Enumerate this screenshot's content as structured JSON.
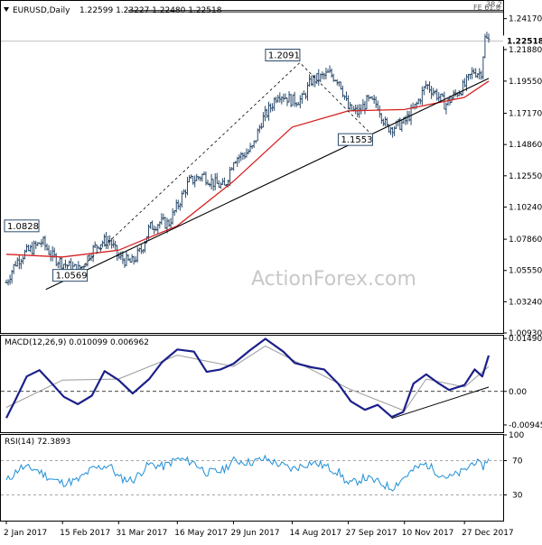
{
  "header": {
    "symbol": "EURUSD,Daily",
    "ohlc": "1.22599 1.23227 1.22480 1.22518"
  },
  "watermark": "ActionForex.com",
  "colors": {
    "price_bars": "#2a4a6b",
    "sma": "#d62020",
    "macd": "#1b1f8a",
    "signal": "#9a9a9a",
    "rsi": "#1e8fd6",
    "trendline": "#000000",
    "grid": "#000000"
  },
  "chart_data": [
    {
      "type": "candlestick",
      "panel": "price",
      "title": "EURUSD,Daily",
      "x_tick_labels": [
        "2 Jan 2017",
        "15 Feb 2017",
        "31 Mar 2017",
        "16 May 2017",
        "29 Jun 2017",
        "14 Aug 2017",
        "27 Sep 2017",
        "10 Nov 2017",
        "27 Dec 2017"
      ],
      "y_tick_labels": [
        "1.24170",
        "1.21880",
        "1.19550",
        "1.17170",
        "1.14860",
        "1.12550",
        "1.10240",
        "1.07860",
        "1.05550",
        "1.03240",
        "1.00930"
      ],
      "y_ticks": [
        1.2417,
        1.2188,
        1.1955,
        1.1717,
        1.1486,
        1.1255,
        1.1024,
        1.0786,
        1.0555,
        1.0324,
        1.0093
      ],
      "ylim": [
        1.0093,
        1.2548
      ],
      "last_price": 1.22518,
      "last_price_label": "1.22518",
      "fib_label": "FE 61.8",
      "fib_label_2": "38.2",
      "fib_level": 1.2467,
      "fib_level_2": 1.2478,
      "annotations": [
        {
          "text": "1.0828",
          "x": "2 Jan 2017",
          "y": 1.0828
        },
        {
          "text": "1.0569",
          "x": "16 Feb 2017",
          "y": 1.0569
        },
        {
          "text": "1.2091",
          "x": "20 Aug 2017",
          "y": 1.2091
        },
        {
          "text": "1.1553",
          "x": "16 Oct 2017",
          "y": 1.1553
        }
      ],
      "close_path": [
        [
          "2 Jan 2017",
          1.0465
        ],
        [
          "9 Jan 2017",
          1.061
        ],
        [
          "16 Jan 2017",
          1.068
        ],
        [
          "23 Jan 2017",
          1.072
        ],
        [
          "30 Jan 2017",
          1.077
        ],
        [
          "7 Feb 2017",
          1.066
        ],
        [
          "15 Feb 2017",
          1.061
        ],
        [
          "22 Feb 2017",
          1.0575
        ],
        [
          "1 Mar 2017",
          1.056
        ],
        [
          "9 Mar 2017",
          1.069
        ],
        [
          "16 Mar 2017",
          1.076
        ],
        [
          "24 Mar 2017",
          1.078
        ],
        [
          "31 Mar 2017",
          1.065
        ],
        [
          "10 Apr 2017",
          1.061
        ],
        [
          "18 Apr 2017",
          1.071
        ],
        [
          "24 Apr 2017",
          1.087
        ],
        [
          "2 May 2017",
          1.091
        ],
        [
          "9 May 2017",
          1.09
        ],
        [
          "16 May 2017",
          1.103
        ],
        [
          "25 May 2017",
          1.121
        ],
        [
          "5 Jun 2017",
          1.126
        ],
        [
          "14 Jun 2017",
          1.12
        ],
        [
          "22 Jun 2017",
          1.117
        ],
        [
          "29 Jun 2017",
          1.138
        ],
        [
          "7 Jul 2017",
          1.141
        ],
        [
          "14 Jul 2017",
          1.146
        ],
        [
          "21 Jul 2017",
          1.166
        ],
        [
          "28 Jul 2017",
          1.176
        ],
        [
          "3 Aug 2017",
          1.187
        ],
        [
          "14 Aug 2017",
          1.181
        ],
        [
          "22 Aug 2017",
          1.182
        ],
        [
          "29 Aug 2017",
          1.196
        ],
        [
          "5 Sep 2017",
          1.198
        ],
        [
          "12 Sep 2017",
          1.201
        ],
        [
          "20 Sep 2017",
          1.196
        ],
        [
          "27 Sep 2017",
          1.175
        ],
        [
          "5 Oct 2017",
          1.172
        ],
        [
          "12 Oct 2017",
          1.181
        ],
        [
          "20 Oct 2017",
          1.178
        ],
        [
          "27 Oct 2017",
          1.161
        ],
        [
          "3 Nov 2017",
          1.162
        ],
        [
          "10 Nov 2017",
          1.165
        ],
        [
          "20 Nov 2017",
          1.179
        ],
        [
          "27 Nov 2017",
          1.193
        ],
        [
          "5 Dec 2017",
          1.186
        ],
        [
          "12 Dec 2017",
          1.178
        ],
        [
          "20 Dec 2017",
          1.186
        ],
        [
          "27 Dec 2017",
          1.192
        ],
        [
          "3 Jan 2018",
          1.203
        ],
        [
          "9 Jan 2018",
          1.201
        ],
        [
          "12 Jan 2018",
          1.227
        ],
        [
          "15 Jan 2018",
          1.2252
        ]
      ],
      "sma_label": "",
      "sma_path": [
        [
          "2 Jan 2017",
          1.0675
        ],
        [
          "15 Feb 2017",
          1.0655
        ],
        [
          "31 Mar 2017",
          1.0705
        ],
        [
          "16 May 2017",
          1.0885
        ],
        [
          "29 Jun 2017",
          1.1215
        ],
        [
          "14 Aug 2017",
          1.1615
        ],
        [
          "27 Sep 2017",
          1.1735
        ],
        [
          "10 Nov 2017",
          1.1745
        ],
        [
          "27 Dec 2017",
          1.1835
        ],
        [
          "15 Jan 2018",
          1.1955
        ]
      ],
      "trendline": [
        [
          "2 Feb 2017",
          1.0415
        ],
        [
          "15 Jan 2018",
          1.1975
        ]
      ],
      "dashed_swings": [
        [
          "1 Mar 2017",
          1.0569
        ],
        [
          "20 Aug 2017",
          1.2091
        ],
        [
          "16 Oct 2017",
          1.1553
        ]
      ]
    },
    {
      "type": "line",
      "panel": "macd",
      "title": "MACD(12,26,9) 0.010099 0.006962",
      "y_tick_labels": [
        "0.014906",
        "0.00",
        "-0.009453"
      ],
      "y_ticks": [
        0.014906,
        0.0,
        -0.009453
      ],
      "ylim": [
        -0.0115,
        0.0157
      ],
      "series": [
        {
          "name": "MACD",
          "values": [
            [
              "2 Jan 2017",
              -0.0075
            ],
            [
              "9 Jan 2017",
              -0.0025
            ],
            [
              "18 Jan 2017",
              0.0042
            ],
            [
              "28 Jan 2017",
              0.006
            ],
            [
              "6 Feb 2017",
              0.0025
            ],
            [
              "16 Feb 2017",
              -0.0015
            ],
            [
              "27 Feb 2017",
              -0.0036
            ],
            [
              "10 Mar 2017",
              -0.0012
            ],
            [
              "20 Mar 2017",
              0.0057
            ],
            [
              "31 Mar 2017",
              0.0032
            ],
            [
              "11 Apr 2017",
              -0.0006
            ],
            [
              "24 Apr 2017",
              0.0035
            ],
            [
              "4 May 2017",
              0.0082
            ],
            [
              "16 May 2017",
              0.0118
            ],
            [
              "29 May 2017",
              0.0112
            ],
            [
              "8 Jun 2017",
              0.0055
            ],
            [
              "19 Jun 2017",
              0.0062
            ],
            [
              "29 Jun 2017",
              0.0078
            ],
            [
              "12 Jul 2017",
              0.0116
            ],
            [
              "24 Jul 2017",
              0.0148
            ],
            [
              "7 Aug 2017",
              0.0112
            ],
            [
              "16 Aug 2017",
              0.008
            ],
            [
              "29 Aug 2017",
              0.0068
            ],
            [
              "8 Sep 2017",
              0.0062
            ],
            [
              "19 Sep 2017",
              0.0022
            ],
            [
              "29 Sep 2017",
              -0.0028
            ],
            [
              "10 Oct 2017",
              -0.0052
            ],
            [
              "20 Oct 2017",
              -0.0038
            ],
            [
              "31 Oct 2017",
              -0.0072
            ],
            [
              "9 Nov 2017",
              -0.0058
            ],
            [
              "17 Nov 2017",
              0.0022
            ],
            [
              "27 Nov 2017",
              0.0048
            ],
            [
              "7 Dec 2017",
              0.0022
            ],
            [
              "15 Dec 2017",
              0.0004
            ],
            [
              "27 Dec 2017",
              0.0018
            ],
            [
              "4 Jan 2018",
              0.0062
            ],
            [
              "10 Jan 2018",
              0.0042
            ],
            [
              "15 Jan 2018",
              0.0101
            ]
          ]
        },
        {
          "name": "Signal",
          "values": [
            [
              "2 Jan 2017",
              -0.0045
            ],
            [
              "15 Feb 2017",
              0.0032
            ],
            [
              "31 Mar 2017",
              0.0035
            ],
            [
              "16 May 2017",
              0.0102
            ],
            [
              "29 Jun 2017",
              0.007
            ],
            [
              "24 Jul 2017",
              0.0128
            ],
            [
              "27 Sep 2017",
              0.0008
            ],
            [
              "10 Nov 2017",
              -0.0055
            ],
            [
              "27 Nov 2017",
              0.0035
            ],
            [
              "27 Dec 2017",
              0.0012
            ],
            [
              "15 Jan 2018",
              0.007
            ]
          ]
        }
      ],
      "trendline": [
        [
          "31 Oct 2017",
          -0.0076
        ],
        [
          "15 Jan 2018",
          0.0012
        ]
      ]
    },
    {
      "type": "line",
      "panel": "rsi",
      "title": "RSI(14) 72.3893",
      "y_tick_labels": [
        "100",
        "70",
        "30",
        "0"
      ],
      "y_ticks": [
        100,
        70,
        30,
        0
      ],
      "ylim": [
        0,
        100
      ],
      "series": [
        {
          "name": "RSI(14)",
          "values": [
            [
              "2 Jan 2017",
              46
            ],
            [
              "13 Jan 2017",
              62
            ],
            [
              "25 Jan 2017",
              60
            ],
            [
              "7 Feb 2017",
              48
            ],
            [
              "15 Feb 2017",
              44
            ],
            [
              "27 Feb 2017",
              47
            ],
            [
              "10 Mar 2017",
              60
            ],
            [
              "24 Mar 2017",
              65
            ],
            [
              "31 Mar 2017",
              50
            ],
            [
              "11 Apr 2017",
              47
            ],
            [
              "24 Apr 2017",
              66
            ],
            [
              "5 May 2017",
              63
            ],
            [
              "16 May 2017",
              72
            ],
            [
              "29 May 2017",
              68
            ],
            [
              "8 Jun 2017",
              56
            ],
            [
              "20 Jun 2017",
              58
            ],
            [
              "29 Jun 2017",
              70
            ],
            [
              "12 Jul 2017",
              68
            ],
            [
              "24 Jul 2017",
              72
            ],
            [
              "7 Aug 2017",
              64
            ],
            [
              "14 Aug 2017",
              60
            ],
            [
              "29 Aug 2017",
              68
            ],
            [
              "8 Sep 2017",
              64
            ],
            [
              "20 Sep 2017",
              56
            ],
            [
              "27 Sep 2017",
              42
            ],
            [
              "10 Oct 2017",
              50
            ],
            [
              "20 Oct 2017",
              45
            ],
            [
              "31 Oct 2017",
              38
            ],
            [
              "10 Nov 2017",
              51
            ],
            [
              "20 Nov 2017",
              62
            ],
            [
              "27 Nov 2017",
              66
            ],
            [
              "7 Dec 2017",
              55
            ],
            [
              "15 Dec 2017",
              50
            ],
            [
              "27 Dec 2017",
              58
            ],
            [
              "4 Jan 2018",
              70
            ],
            [
              "10 Jan 2018",
              62
            ],
            [
              "15 Jan 2018",
              72.4
            ]
          ]
        }
      ],
      "reference_lines": [
        70,
        30
      ]
    }
  ]
}
